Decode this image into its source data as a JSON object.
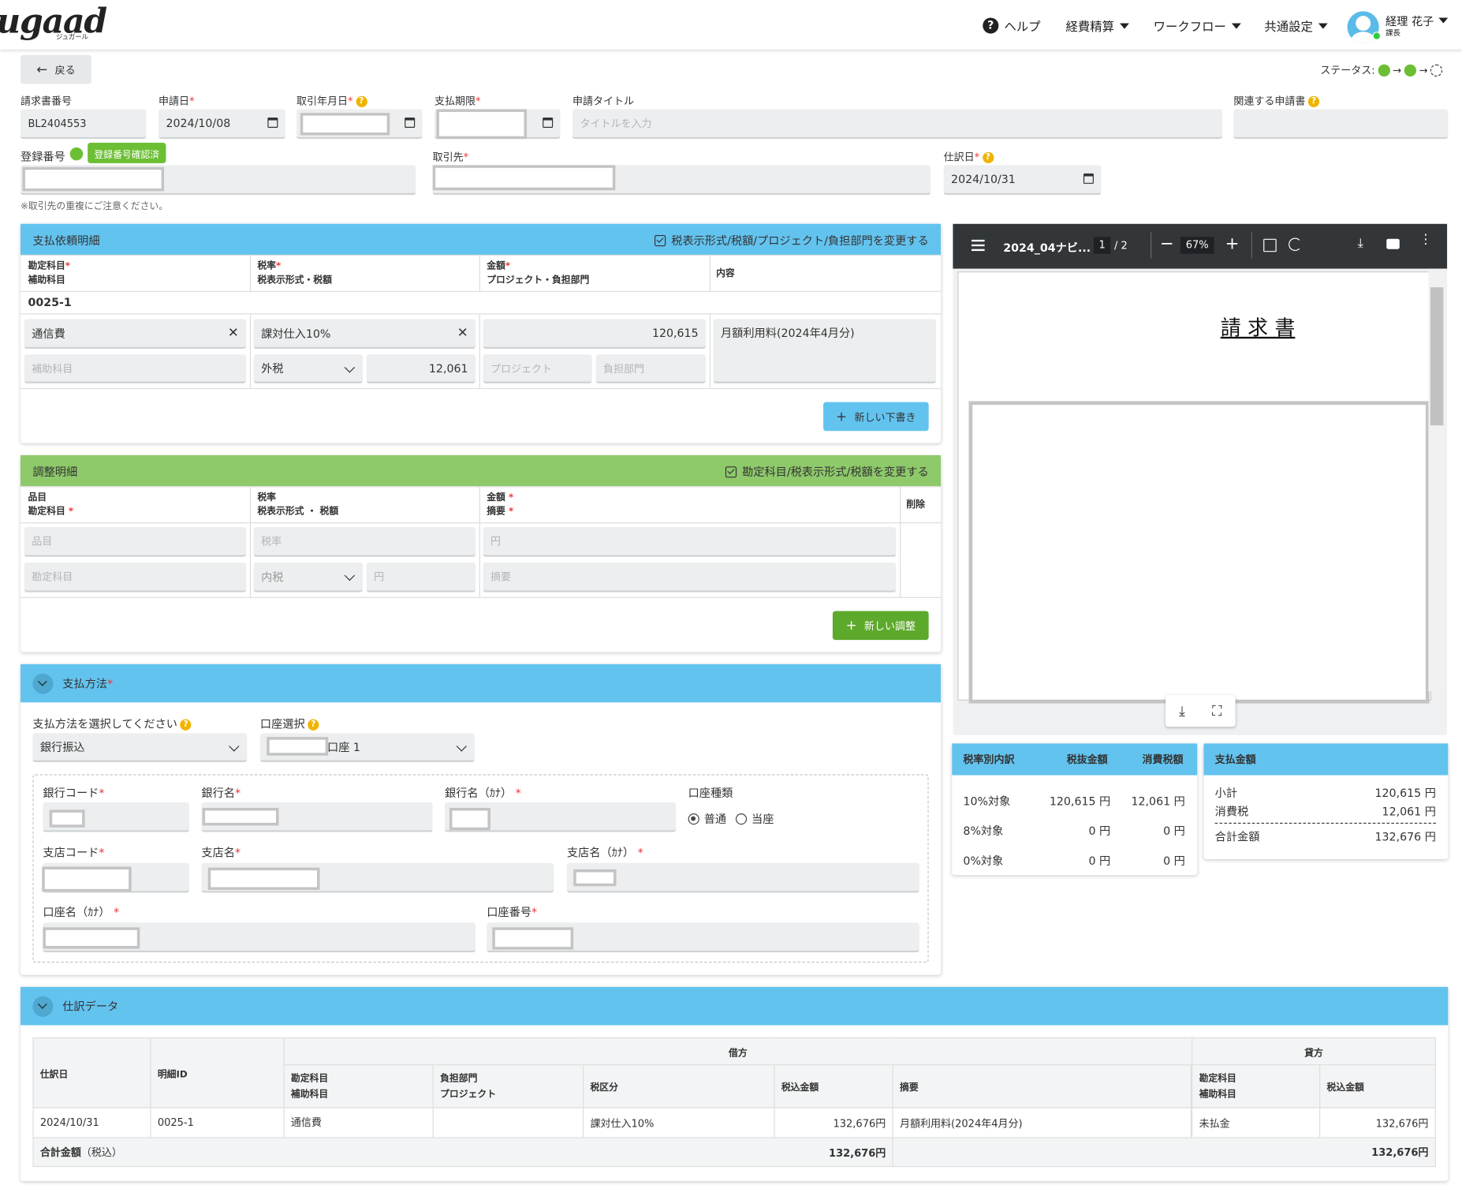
{
  "header": {
    "logo": "ugaad",
    "logo_sub": "ジュガール",
    "help": "ヘルプ",
    "nav_expense": "経費精算",
    "nav_workflow": "ワークフロー",
    "nav_settings": "共通設定",
    "user_name": "経理 花子",
    "user_role": "課長"
  },
  "toolbar": {
    "back": "戻る",
    "status_label": "ステータス:"
  },
  "form": {
    "invoice_no_label": "請求書番号",
    "invoice_no": "BL2404553",
    "apply_date_label": "申請日",
    "apply_date": "2024/10/08",
    "trade_date_label": "取引年月日",
    "due_label": "支払期限",
    "title_label": "申請タイトル",
    "title_placeholder": "タイトルを入力",
    "related_label": "関連する申請書",
    "reg_no_label": "登録番号",
    "reg_badge": "登録番号確認済",
    "vendor_label": "取引先",
    "journal_date_label": "仕訳日",
    "journal_date": "2024/10/31",
    "dup_note": "※取引先の重複にご注意ください。"
  },
  "payment_detail": {
    "title": "支払依頼明細",
    "toggle": "税表示形式/税額/プロジェクト/負担部門を変更する",
    "h_account": "勘定科目",
    "h_sub": "補助科目",
    "h_rate": "税率",
    "h_taxfmt": "税表示形式・税額",
    "h_amount": "金額",
    "h_proj": "プロジェクト・負担部門",
    "h_content": "内容",
    "row_id": "0025-1",
    "account": "通信費",
    "sub_ph": "補助科目",
    "rate": "課対仕入10%",
    "taxfmt": "外税",
    "tax": "12,061",
    "amount": "120,615",
    "proj_ph": "プロジェクト",
    "dept_ph": "負担部門",
    "content": "月額利用料(2024年4月分)",
    "new_btn": "新しい下書き"
  },
  "adjust": {
    "title": "調整明細",
    "toggle": "勘定科目/税表示形式/税額を変更する",
    "h_item": "品目",
    "h_account": "勘定科目",
    "h_rate": "税率",
    "h_taxfmt": "税表示形式 ・ 税額",
    "h_amount": "金額",
    "h_memo": "摘要",
    "h_del": "削除",
    "item_ph": "品目",
    "account_ph": "勘定科目",
    "rate_ph": "税率",
    "taxfmt": "内税",
    "yen_ph": "円",
    "memo_ph": "摘要",
    "amount_ph": "円",
    "new_btn": "新しい調整"
  },
  "payment_method": {
    "title": "支払方法",
    "method_label": "支払方法を選択してください",
    "method": "銀行振込",
    "account_label": "口座選択",
    "account_suffix": "口座 1",
    "bank_code": "銀行コード",
    "bank_name": "銀行名",
    "bank_kana": "銀行名（ｶﾅ）",
    "acct_type": "口座種類",
    "ordinary": "普通",
    "current": "当座",
    "branch_code": "支店コード",
    "branch_name": "支店名",
    "branch_kana": "支店名（ｶﾅ）",
    "holder_kana": "口座名（ｶﾅ）",
    "acct_no": "口座番号"
  },
  "pdf": {
    "filename": "2024_04ナビ...",
    "page": "1",
    "pages": "/ 2",
    "zoom": "67%",
    "doc_title": "請 求 書"
  },
  "tax_breakdown": {
    "title": "税率別内訳",
    "h_excl": "税抜金額",
    "h_tax": "消費税額",
    "rows": [
      {
        "label": "10%対象",
        "excl": "120,615 円",
        "tax": "12,061 円"
      },
      {
        "label": "8%対象",
        "excl": "0 円",
        "tax": "0 円"
      },
      {
        "label": "0%対象",
        "excl": "0 円",
        "tax": "0 円"
      }
    ]
  },
  "payment_total": {
    "title": "支払金額",
    "subtotal_label": "小計",
    "subtotal": "120,615 円",
    "tax_label": "消費税",
    "tax": "12,061 円",
    "total_label": "合計金額",
    "total": "132,676 円"
  },
  "journal": {
    "title": "仕訳データ",
    "h_date": "仕訳日",
    "h_id": "明細ID",
    "h_debit": "借方",
    "h_credit": "貸方",
    "h_account": "勘定科目",
    "h_sub": "補助科目",
    "h_dept": "負担部門",
    "h_proj": "プロジェクト",
    "h_taxcls": "税区分",
    "h_amount": "税込金額",
    "h_memo": "摘要",
    "date": "2024/10/31",
    "id": "0025-1",
    "account": "通信費",
    "taxcls": "課対仕入10%",
    "amount": "132,676円",
    "memo": "月額利用料(2024年4月分)",
    "cr_account": "未払金",
    "cr_amount": "132,676円",
    "total_label": "合計金額",
    "total_sub": "（税込）",
    "total_debit": "132,676円",
    "total_credit": "132,676円"
  },
  "colors": {
    "blue": "#63c3ef",
    "green": "#8ec96a",
    "green_btn": "#5da92c",
    "blue_btn": "#63c3ef",
    "pdf_bar": "#323639"
  }
}
